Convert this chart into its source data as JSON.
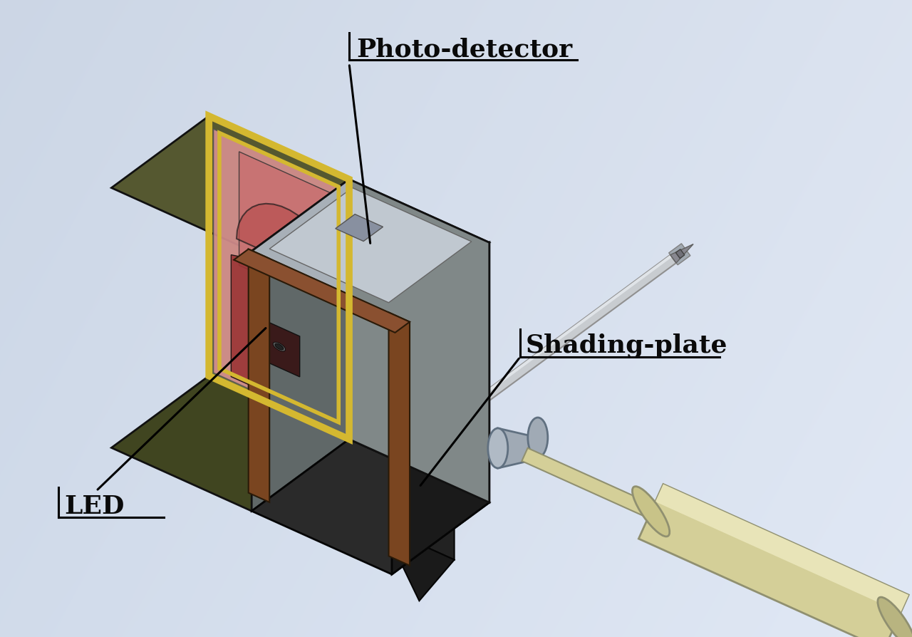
{
  "labels": {
    "photo_detector": "Photo-detector",
    "shading_plate": "Shading-plate",
    "led": "LED"
  },
  "label_fontsize": 26,
  "colors": {
    "bg_top": "#d8e2ec",
    "bg_bottom": "#c8d4e0",
    "olive_side": "#6b7040",
    "olive_top": "#555830",
    "olive_dark": "#404520",
    "red_interior": "#c87070",
    "red_dark": "#9a3535",
    "red_mid": "#b85050",
    "pink_light": "#d89090",
    "gold_border": "#d4b830",
    "brown_panel": "#7a4520",
    "gray_top": "#a8b0b8",
    "gray_front": "#808888",
    "gray_dark": "#606868",
    "gray_light": "#c0c8d0",
    "black_housing": "#2a2a2a",
    "black_dark": "#1a1a1a",
    "cream_cyl": "#d4cf98",
    "cream_dark": "#b8b480",
    "cream_end": "#c8c388",
    "silver_rod": "#c8ccd2",
    "silver_dark": "#9098a0",
    "blue_gray": "#a0aab5",
    "needle_body": "#c8ccd0",
    "needle_dark": "#a0a8b0"
  }
}
